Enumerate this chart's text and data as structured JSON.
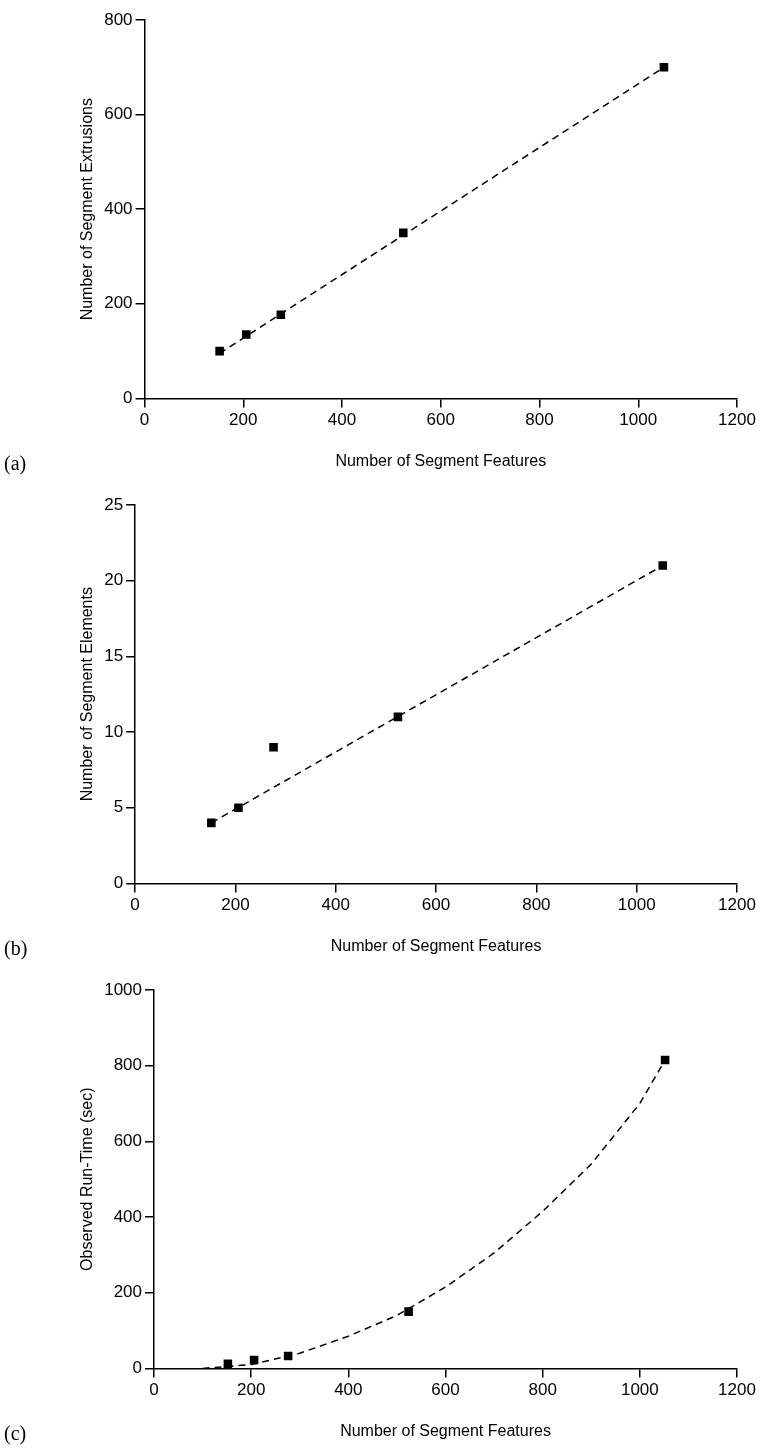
{
  "chart_data": [
    {
      "type": "scatter",
      "xlabel": "Number of Segment Features",
      "ylabel": "Number of Segment Extrusions",
      "annotations": [
        "(a)"
      ],
      "xlim": [
        0,
        1200
      ],
      "xticks": [
        0,
        200,
        400,
        600,
        800,
        1000,
        1200
      ],
      "ylim": [
        0,
        800
      ],
      "yticks": [
        0,
        200,
        400,
        600,
        800
      ],
      "grid": false,
      "series": [
        {
          "type": "scatter",
          "color": "#000000",
          "marker": "square",
          "x": [
            152,
            206,
            276,
            524,
            1052
          ],
          "values": [
            100,
            135,
            177,
            350,
            700
          ]
        },
        {
          "type": "line",
          "color": "#000000",
          "marker": "none",
          "line_style": "dashed",
          "x": [
            152,
            1052
          ],
          "values": [
            95,
            700
          ]
        }
      ]
    },
    {
      "type": "scatter",
      "xlabel": "Number of Segment Features",
      "ylabel": "Number of Segment Elements",
      "annotations": [
        "(b)"
      ],
      "xlim": [
        0,
        1200
      ],
      "xticks": [
        0,
        200,
        400,
        600,
        800,
        1000,
        1200
      ],
      "ylim": [
        0,
        25
      ],
      "yticks": [
        0,
        5,
        10,
        15,
        20,
        25
      ],
      "grid": false,
      "series": [
        {
          "type": "scatter",
          "color": "#000000",
          "marker": "square",
          "x": [
            152,
            206,
            276,
            524,
            1052
          ],
          "values": [
            4,
            5,
            9,
            11,
            21
          ]
        },
        {
          "type": "line",
          "color": "#000000",
          "marker": "none",
          "line_style": "dashed",
          "x": [
            152,
            1052
          ],
          "values": [
            4,
            21
          ]
        }
      ]
    },
    {
      "type": "scatter",
      "xlabel": "Number of Segment Features",
      "ylabel": "Observed Run-Time (sec)",
      "annotations": [
        "(c)"
      ],
      "xlim": [
        0,
        1200
      ],
      "xticks": [
        0,
        200,
        400,
        600,
        800,
        1000,
        1200
      ],
      "ylim": [
        0,
        1000
      ],
      "yticks": [
        0,
        200,
        400,
        600,
        800,
        1000
      ],
      "grid": false,
      "series": [
        {
          "type": "scatter",
          "color": "#000000",
          "marker": "square",
          "x": [
            152,
            206,
            276,
            524,
            1052
          ],
          "values": [
            12,
            22,
            33,
            150,
            815
          ]
        },
        {
          "type": "line",
          "color": "#000000",
          "marker": "none",
          "line_style": "dashed",
          "x": [
            100,
            200,
            300,
            400,
            500,
            600,
            700,
            800,
            900,
            1000,
            1052
          ],
          "values": [
            0,
            10,
            40,
            85,
            140,
            215,
            305,
            415,
            540,
            700,
            815
          ]
        }
      ]
    }
  ]
}
